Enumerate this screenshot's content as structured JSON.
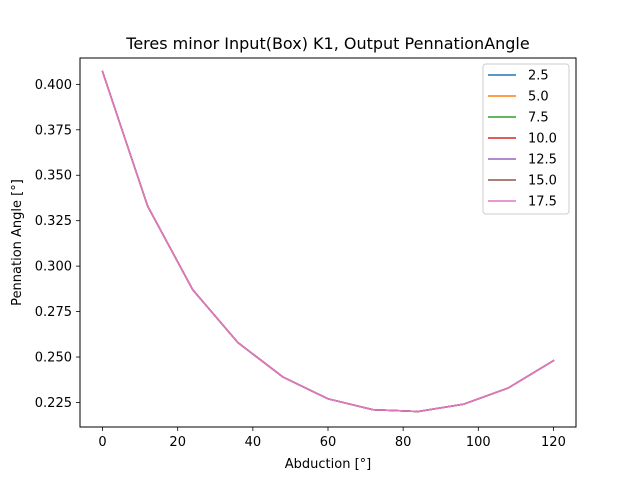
{
  "chart_data": {
    "type": "line",
    "title": "Teres minor Input(Box) K1, Output PennationAngle",
    "xlabel": "Abduction [°]",
    "ylabel": "Pennation Angle [°]",
    "xlim": [
      -6,
      126
    ],
    "ylim": [
      0.2115,
      0.4145
    ],
    "xticks": [
      0,
      20,
      40,
      60,
      80,
      100,
      120
    ],
    "yticks": [
      0.225,
      0.25,
      0.275,
      0.3,
      0.325,
      0.35,
      0.375,
      0.4
    ],
    "ytick_labels": [
      "0.225",
      "0.250",
      "0.275",
      "0.300",
      "0.325",
      "0.350",
      "0.375",
      "0.400"
    ],
    "grid": false,
    "legend_position": "top-right",
    "x": [
      0,
      12,
      24,
      36,
      48,
      60,
      72,
      84,
      96,
      108,
      120
    ],
    "series": [
      {
        "name": "2.5",
        "color": "#1f77b4",
        "values": [
          0.407,
          0.333,
          0.287,
          0.258,
          0.239,
          0.227,
          0.221,
          0.22,
          0.224,
          0.233,
          0.248
        ]
      },
      {
        "name": "5.0",
        "color": "#ff7f0e",
        "values": [
          0.407,
          0.333,
          0.287,
          0.258,
          0.239,
          0.227,
          0.221,
          0.22,
          0.224,
          0.233,
          0.248
        ]
      },
      {
        "name": "7.5",
        "color": "#2ca02c",
        "values": [
          0.407,
          0.333,
          0.287,
          0.258,
          0.239,
          0.227,
          0.221,
          0.22,
          0.224,
          0.233,
          0.248
        ]
      },
      {
        "name": "10.0",
        "color": "#d62728",
        "values": [
          0.407,
          0.333,
          0.287,
          0.258,
          0.239,
          0.227,
          0.221,
          0.22,
          0.224,
          0.233,
          0.248
        ]
      },
      {
        "name": "12.5",
        "color": "#9467bd",
        "values": [
          0.407,
          0.333,
          0.287,
          0.258,
          0.239,
          0.227,
          0.221,
          0.22,
          0.224,
          0.233,
          0.248
        ]
      },
      {
        "name": "15.0",
        "color": "#8c564b",
        "values": [
          0.407,
          0.333,
          0.287,
          0.258,
          0.239,
          0.227,
          0.221,
          0.22,
          0.224,
          0.233,
          0.248
        ]
      },
      {
        "name": "17.5",
        "color": "#e377c2",
        "values": [
          0.407,
          0.333,
          0.287,
          0.258,
          0.239,
          0.227,
          0.221,
          0.22,
          0.224,
          0.233,
          0.248
        ]
      }
    ]
  }
}
